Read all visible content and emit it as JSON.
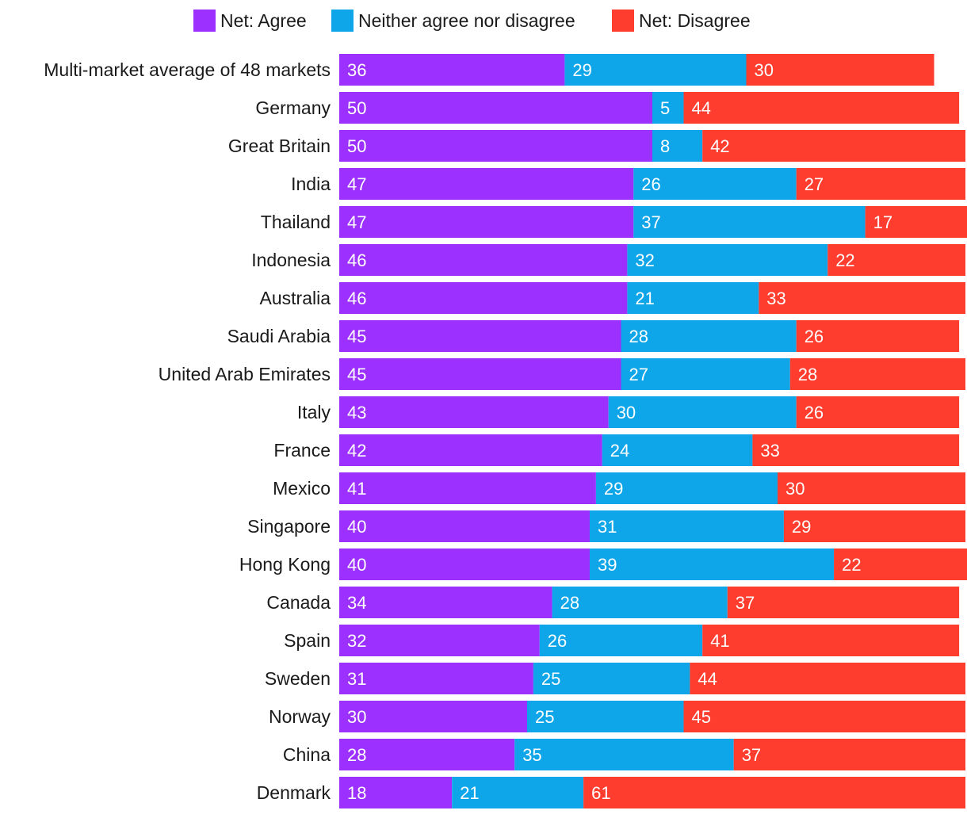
{
  "chart_data": {
    "type": "bar",
    "orientation": "horizontal",
    "stacked": true,
    "legend_position": "top",
    "categories": [
      "Multi-market average of 48 markets",
      "Germany",
      "Great Britain",
      "India",
      "Thailand",
      "Indonesia",
      "Australia",
      "Saudi Arabia",
      "United Arab Emirates",
      "Italy",
      "France",
      "Mexico",
      "Singapore",
      "Hong Kong",
      "Canada",
      "Spain",
      "Sweden",
      "Norway",
      "China",
      "Denmark"
    ],
    "series": [
      {
        "name": "Net: Agree",
        "color": "#9b30ff",
        "values": [
          36,
          50,
          50,
          47,
          47,
          46,
          46,
          45,
          45,
          43,
          42,
          41,
          40,
          40,
          34,
          32,
          31,
          30,
          28,
          18
        ]
      },
      {
        "name": "Neither agree nor disagree",
        "color": "#0ea5e9",
        "values": [
          29,
          5,
          8,
          26,
          37,
          32,
          21,
          28,
          27,
          30,
          24,
          29,
          31,
          39,
          28,
          26,
          25,
          25,
          35,
          21
        ]
      },
      {
        "name": "Net: Disagree",
        "color": "#ff3d2e",
        "values": [
          30,
          44,
          42,
          27,
          17,
          22,
          33,
          26,
          28,
          26,
          33,
          30,
          29,
          22,
          37,
          41,
          44,
          45,
          37,
          61
        ]
      }
    ],
    "xlim": [
      0,
      100
    ],
    "grid": false,
    "title": "",
    "xlabel": "",
    "ylabel": ""
  }
}
